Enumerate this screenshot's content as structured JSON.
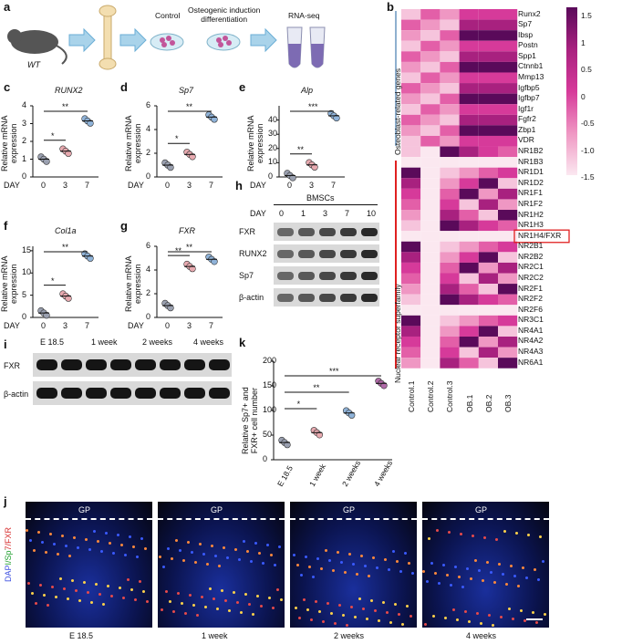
{
  "panel_a": {
    "label": "a",
    "mouse_label": "WT",
    "step_control": "Control",
    "step_osteo": "Osteogenic induction\ndifferentiation",
    "step_rnaseq": "RNA-seq"
  },
  "panel_b": {
    "label": "b",
    "group_osteo": "Osteoblast-related genes",
    "group_nuclear": "Nuclear receptor superfamily",
    "highlight": "NR1H4/FXR",
    "columns": [
      "Control.1",
      "Control.2",
      "Control.3",
      "OB.1",
      "OB.2",
      "OB.3"
    ],
    "rows": [
      "Runx2",
      "Sp7",
      "Ibsp",
      "Postn",
      "Spp1",
      "Ctnnb1",
      "Mmp13",
      "Igfbp5",
      "Igfbp7",
      "Igf1r",
      "Fgfr2",
      "Zbp1",
      "VDR",
      "NR1B2",
      "NR1B3",
      "NR1D1",
      "NR1D2",
      "NR1F1",
      "NR1F2",
      "NR1H2",
      "NR1H3",
      "NR1H4/FXR",
      "NR2B1",
      "NR2B2",
      "NR2C1",
      "NR2C2",
      "NR2F1",
      "NR2F2",
      "NR2F6",
      "NR3C1",
      "NR4A1",
      "NR4A2",
      "NR4A3",
      "NR6A1"
    ],
    "colorbar_ticks": [
      "1.5",
      "1",
      "0.5",
      "0",
      "-0.5",
      "-1.0",
      "-1.5"
    ],
    "colors": {
      "high": "#5a0a5a",
      "mid": "#d63a9a",
      "low": "#fbe8f0"
    }
  },
  "chart_data": [
    {
      "type": "scatter",
      "panel": "c",
      "title": "RUNX2",
      "ylabel": "Relative mRNA\nexpression",
      "xlabel": "DAY",
      "categories": [
        "0",
        "3",
        "7"
      ],
      "values": [
        1.0,
        1.45,
        3.15
      ],
      "ylim": [
        0,
        4
      ],
      "yticks": [
        0,
        1,
        2,
        3,
        4
      ],
      "sig": [
        "*",
        "**"
      ]
    },
    {
      "type": "scatter",
      "panel": "d",
      "title": "Sp7",
      "ylabel": "Relative mRNA\nexpression",
      "xlabel": "DAY",
      "categories": [
        "0",
        "3",
        "7"
      ],
      "values": [
        1.0,
        1.9,
        5.05
      ],
      "ylim": [
        0,
        6
      ],
      "yticks": [
        0,
        2,
        4,
        6
      ],
      "sig": [
        "*",
        "**"
      ]
    },
    {
      "type": "scatter",
      "panel": "e",
      "title": "Alp",
      "ylabel": "Relative mRNA\nexpression",
      "xlabel": "DAY",
      "categories": [
        "0",
        "3",
        "7"
      ],
      "values": [
        1.0,
        8.5,
        43
      ],
      "ylim": [
        0,
        50
      ],
      "yticks": [
        0,
        10,
        20,
        30,
        40
      ],
      "sig": [
        "**",
        "***"
      ]
    },
    {
      "type": "scatter",
      "panel": "f",
      "title": "Col1a",
      "ylabel": "Relative mRNA\nexpression",
      "xlabel": "DAY",
      "categories": [
        "0",
        "3",
        "7"
      ],
      "values": [
        1.0,
        4.8,
        13.8
      ],
      "ylim": [
        0,
        16
      ],
      "yticks": [
        0,
        5,
        10,
        15
      ],
      "sig": [
        "*",
        "**"
      ]
    },
    {
      "type": "scatter",
      "panel": "g",
      "title": "FXR",
      "ylabel": "Relative mRNA\nexpression",
      "xlabel": "DAY",
      "categories": [
        "0",
        "3",
        "7"
      ],
      "values": [
        1.0,
        4.3,
        4.9
      ],
      "ylim": [
        0,
        6
      ],
      "yticks": [
        0,
        2,
        4,
        6
      ],
      "sig": [
        "**",
        "**"
      ]
    },
    {
      "type": "scatter",
      "panel": "k",
      "ylabel": "Relative Sp7+ and\nFXR+ cell number",
      "categories": [
        "E 18.5",
        "1 week",
        "2 weeks",
        "4 weeks"
      ],
      "values": [
        35,
        55,
        95,
        155
      ],
      "ylim": [
        0,
        200
      ],
      "yticks": [
        0,
        50,
        100,
        150,
        200
      ],
      "sig": [
        "*",
        "**",
        "***"
      ]
    }
  ],
  "panel_h": {
    "label": "h",
    "group": "BMSCs",
    "day_label": "DAY",
    "days": [
      "0",
      "1",
      "3",
      "7",
      "10"
    ],
    "rows": [
      "FXR",
      "RUNX2",
      "Sp7",
      "β-actin"
    ]
  },
  "panel_i": {
    "label": "i",
    "stages": [
      "E 18.5",
      "1 week",
      "2 weeks",
      "4 weeks"
    ],
    "rows": [
      "FXR",
      "β-actin"
    ]
  },
  "panel_j": {
    "label": "j",
    "side_label": "DAPI/Sp7/FXR",
    "gp": "GP",
    "stages": [
      "E 18.5",
      "1 week",
      "2 weeks",
      "4 weeks"
    ]
  },
  "panel_k": {
    "label": "k"
  }
}
